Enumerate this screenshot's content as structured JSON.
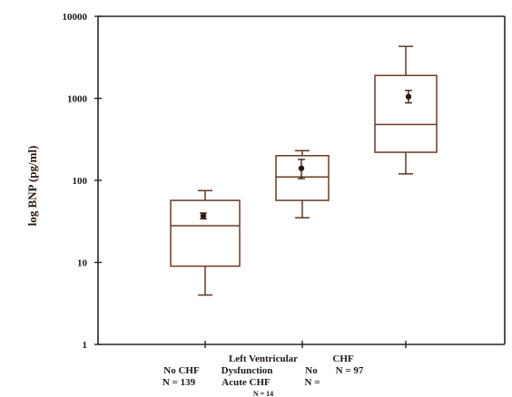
{
  "chart_data": {
    "type": "box",
    "ylabel": "log BNP (pg/ml)",
    "yscale": "log",
    "ylim": [
      1,
      10000
    ],
    "yticks": [
      "1",
      "10",
      "100",
      "1000",
      "10000"
    ],
    "grid": false,
    "groups": [
      {
        "label_lines": [
          "No  CHF",
          "N = 139"
        ],
        "whisker_low": 4,
        "q1": 9,
        "median": 28,
        "q3": 57,
        "whisker_high": 75,
        "mean": 37,
        "mean_err_low": 34,
        "mean_err_high": 40
      },
      {
        "label_lines": [
          "Left Ventricular",
          "Dysfunction",
          "Acute CHF",
          "N = 14"
        ],
        "whisker_low": 35,
        "q1": 57,
        "median": 110,
        "q3": 200,
        "whisker_high": 230,
        "mean": 140,
        "mean_err_low": 105,
        "mean_err_high": 180
      },
      {
        "label_lines": [
          "CHF",
          "N = 97"
        ],
        "whisker_low": 120,
        "q1": 220,
        "median": 480,
        "q3": 1900,
        "whisker_high": 4300,
        "mean": 1050,
        "mean_err_low": 880,
        "mean_err_high": 1250
      }
    ],
    "extra_labels": [
      "No",
      "N ="
    ]
  }
}
